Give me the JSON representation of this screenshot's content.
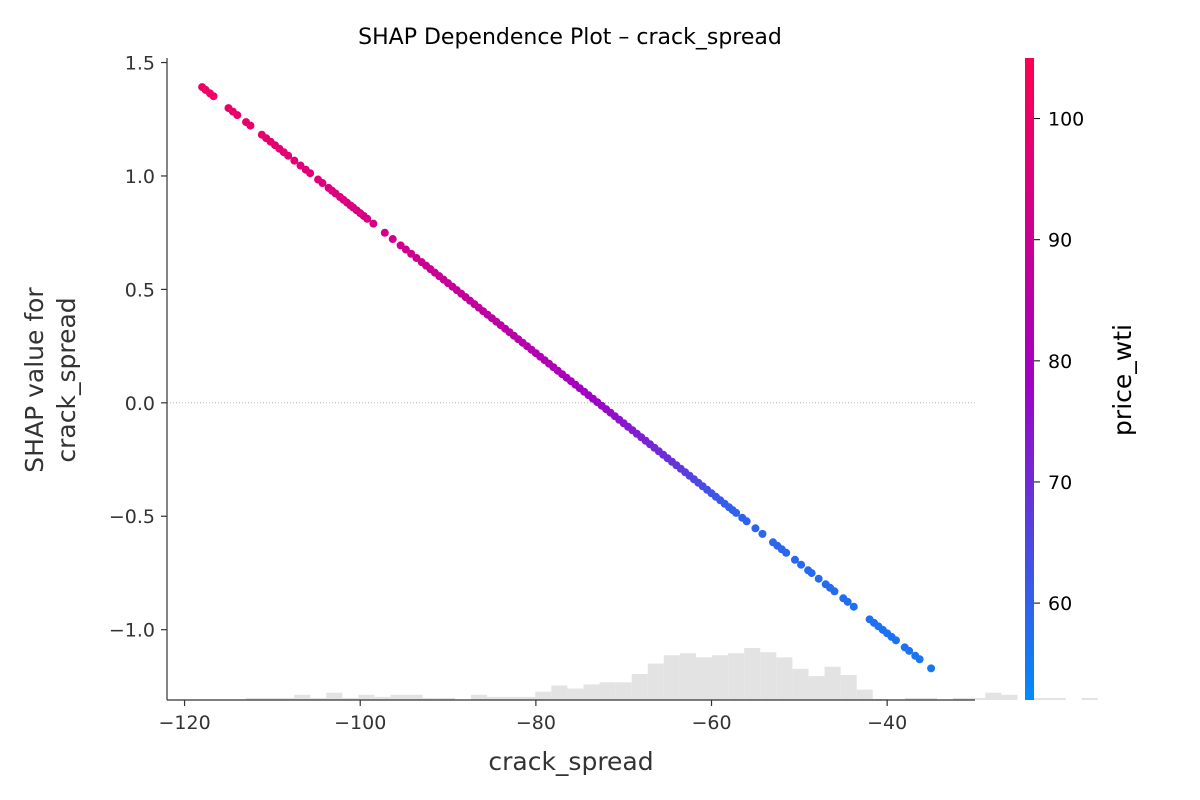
{
  "chart_data": {
    "type": "scatter",
    "title": "SHAP Dependence Plot – crack_spread",
    "xlabel": "crack_spread",
    "ylabel_lines": [
      "SHAP value for",
      "crack_spread"
    ],
    "colorbar_label": "price_wti",
    "xlim": [
      -122,
      -30
    ],
    "ylim": [
      -1.31,
      1.52
    ],
    "xticks": [
      -120,
      -100,
      -80,
      -60,
      -40
    ],
    "xtick_labels": [
      "−120",
      "−100",
      "−80",
      "−60",
      "−40"
    ],
    "yticks": [
      1.5,
      1.0,
      0.5,
      0.0,
      -0.5,
      -1.0
    ],
    "ytick_labels": [
      "1.5",
      "1.0",
      "0.5",
      "0.0",
      "−0.5",
      "−1.0"
    ],
    "colorbar_range": [
      52,
      105
    ],
    "colorbar_ticks": [
      60,
      70,
      80,
      90,
      100
    ],
    "colorbar_tick_labels": [
      "60",
      "70",
      "80",
      "90",
      "100"
    ],
    "colors": {
      "low": "#008bfb",
      "mid": "#a200c4",
      "high": "#ff0052",
      "histogram": "#e3e3e3",
      "zero_line": "#aaaaaa"
    },
    "zero_line": 0.0,
    "trend": {
      "slope": -0.03087,
      "intercept": -2.2509
    },
    "color_by_x": [
      [
        -118,
        100.5
      ],
      [
        -100,
        93.8
      ],
      [
        -85,
        86.2
      ],
      [
        -78,
        82
      ],
      [
        -72,
        76.5
      ],
      [
        -65,
        69.5
      ],
      [
        -58,
        60
      ],
      [
        -35,
        56
      ]
    ],
    "x": [
      -118.0,
      -117.6,
      -117.1,
      -116.7,
      -115.0,
      -114.5,
      -114.0,
      -113.0,
      -112.5,
      -111.2,
      -110.7,
      -110.2,
      -109.7,
      -109.2,
      -108.7,
      -108.2,
      -107.5,
      -106.8,
      -106.2,
      -105.7,
      -104.8,
      -104.3,
      -103.6,
      -103.2,
      -102.8,
      -102.3,
      -101.9,
      -101.5,
      -101.1,
      -100.8,
      -100.4,
      -100.0,
      -99.6,
      -99.2,
      -98.5,
      -97.2,
      -96.3,
      -95.4,
      -94.8,
      -94.2,
      -93.6,
      -93.0,
      -92.5,
      -92.0,
      -91.5,
      -91.0,
      -90.5,
      -90.0,
      -89.5,
      -89.0,
      -88.5,
      -88.0,
      -87.5,
      -87.0,
      -86.5,
      -86.0,
      -85.5,
      -85.0,
      -84.5,
      -84.0,
      -83.5,
      -83.0,
      -82.5,
      -82.0,
      -81.5,
      -81.0,
      -80.5,
      -80.0,
      -79.5,
      -79.0,
      -78.5,
      -78.0,
      -77.5,
      -77.0,
      -76.5,
      -76.0,
      -75.5,
      -75.0,
      -74.5,
      -74.0,
      -73.5,
      -73.0,
      -72.5,
      -72.0,
      -71.5,
      -71.0,
      -70.5,
      -70.0,
      -69.5,
      -69.0,
      -68.5,
      -68.0,
      -67.5,
      -67.0,
      -66.5,
      -66.0,
      -65.5,
      -65.0,
      -64.5,
      -64.0,
      -63.5,
      -63.0,
      -62.5,
      -62.0,
      -61.5,
      -61.0,
      -60.5,
      -60.0,
      -59.5,
      -59.0,
      -58.5,
      -58.0,
      -57.6,
      -57.2,
      -56.5,
      -56.0,
      -55.0,
      -54.2,
      -53.0,
      -52.5,
      -52.0,
      -51.5,
      -50.5,
      -49.8,
      -49.0,
      -48.6,
      -47.8,
      -47.0,
      -46.5,
      -46.0,
      -45.0,
      -44.5,
      -43.8,
      -42.0,
      -41.5,
      -41.0,
      -40.5,
      -40.0,
      -39.5,
      -39.0,
      -38.0,
      -37.5,
      -36.8,
      -36.3,
      -35.0
    ],
    "histogram": {
      "bin_edges_start": -118.5,
      "bin_width": 1.83,
      "counts": [
        0,
        0,
        0,
        0.2,
        0.2,
        0.2,
        0.5,
        0.2,
        0.7,
        0.2,
        0.5,
        0.3,
        0.5,
        0.5,
        0.2,
        0.2,
        0,
        0.5,
        0.3,
        0.3,
        0.3,
        0.8,
        1.4,
        1.1,
        1.5,
        1.7,
        1.7,
        2.5,
        3.5,
        4.3,
        4.5,
        4.1,
        4.3,
        4.5,
        5.0,
        4.6,
        4.1,
        3.0,
        2.3,
        3.2,
        2.4,
        1.0,
        0.1,
        0,
        0.2,
        0.2,
        0,
        0.2,
        0.2,
        0.7,
        0.5,
        0,
        0.2,
        0.2,
        0,
        0.2
      ]
    }
  }
}
